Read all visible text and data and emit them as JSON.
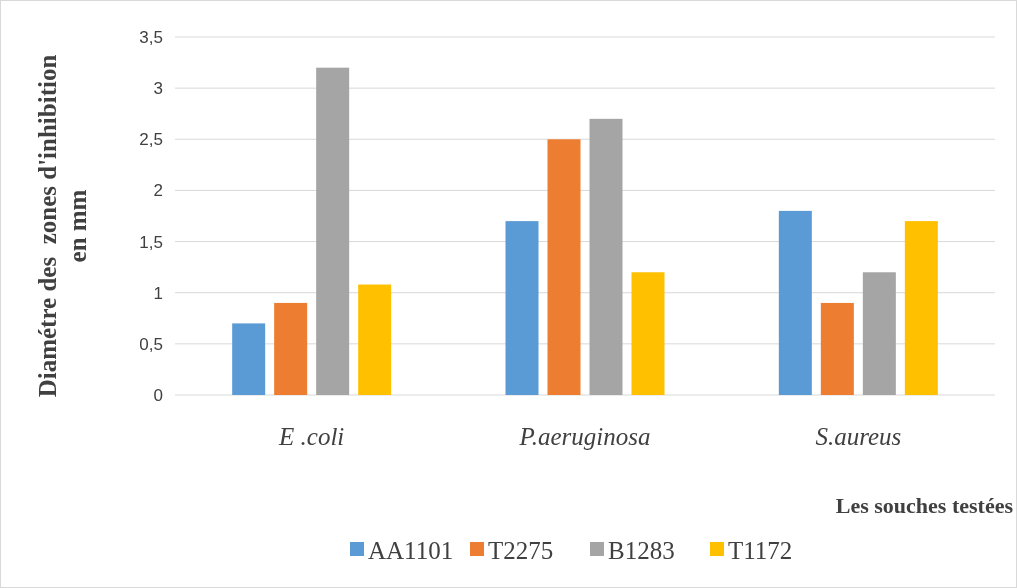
{
  "chart_data": {
    "type": "bar",
    "ylabel": "Diamétre des  zones d'inhibition\nen mm",
    "xlabel": "Les souches testées",
    "categories": [
      "E .coli",
      "P.aeruginosa",
      "S.aureus"
    ],
    "series": [
      {
        "name": "AA1101",
        "color": "#5b9bd5",
        "values": [
          0.7,
          1.7,
          1.8
        ]
      },
      {
        "name": "T2275",
        "color": "#ed7d31",
        "values": [
          0.9,
          2.5,
          0.9
        ]
      },
      {
        "name": "B1283",
        "color": "#a5a5a5",
        "values": [
          3.2,
          2.7,
          1.2
        ]
      },
      {
        "name": "T1172",
        "color": "#ffc000",
        "values": [
          1.08,
          1.2,
          1.7
        ]
      }
    ],
    "ylim": [
      0,
      3.5
    ],
    "yticks": [
      0,
      {
        "value": 0.5,
        "label": "0,5"
      },
      1,
      {
        "value": 1.5,
        "label": "1,5"
      },
      2,
      {
        "value": 2.5,
        "label": "2,5"
      },
      3,
      {
        "value": 3.5,
        "label": "3,5"
      }
    ],
    "grid": "y",
    "legend": "bottom"
  }
}
